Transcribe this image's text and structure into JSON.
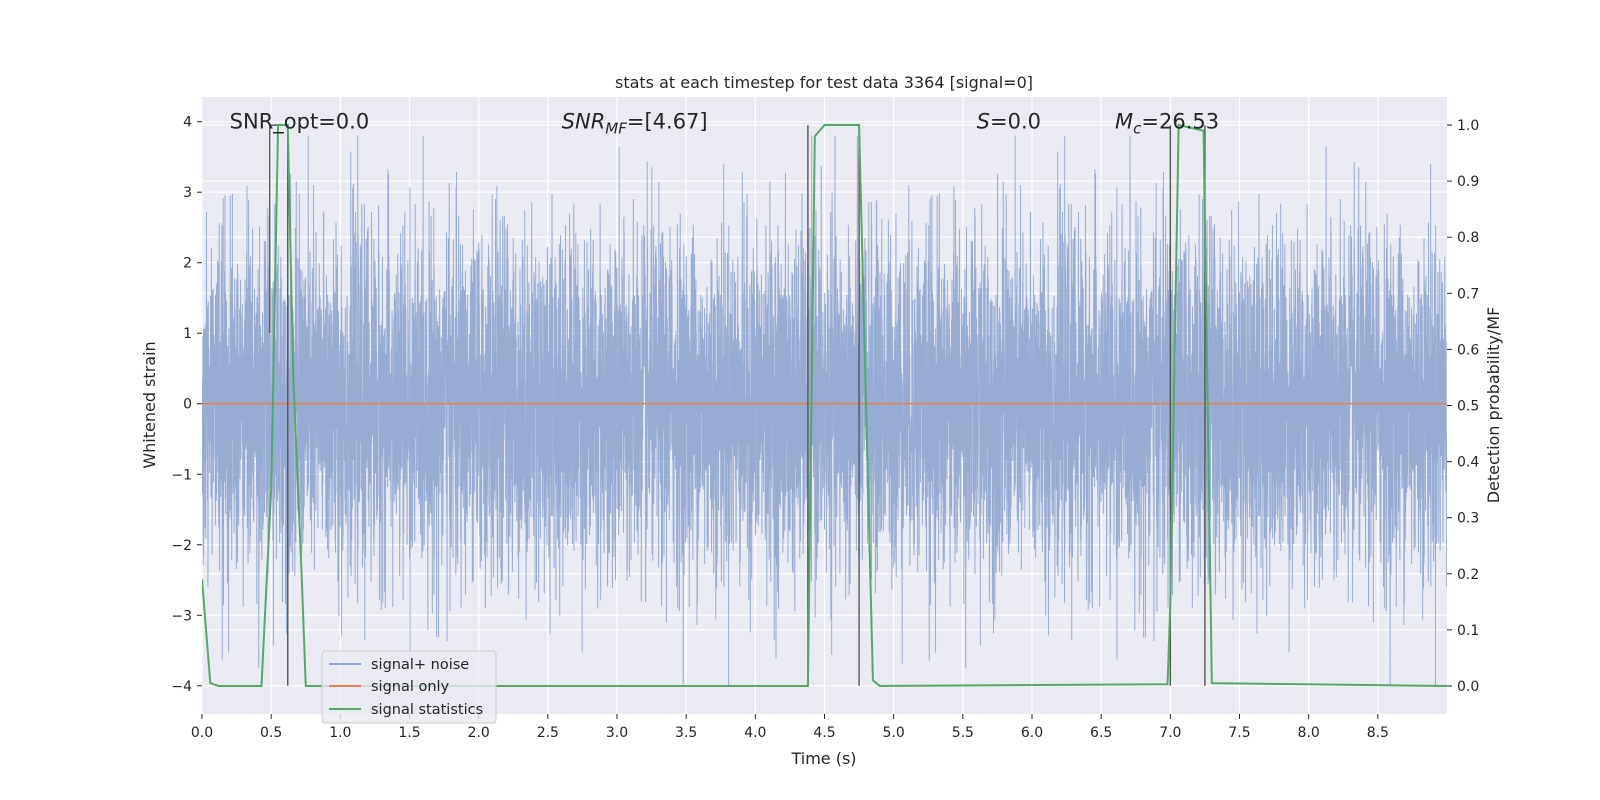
{
  "chart_data": {
    "type": "line",
    "title": "stats at each timestep for test data 3364 [signal=0]",
    "xlabel": "Time (s)",
    "ylabel_left": "Whitened strain",
    "ylabel_right": "Detection probability/MF",
    "xlim": [
      0.0,
      9.0
    ],
    "ylim_left": [
      -4.4,
      4.35
    ],
    "ylim_right": [
      -0.05,
      1.05
    ],
    "x_ticks": [
      0.0,
      0.5,
      1.0,
      1.5,
      2.0,
      2.5,
      3.0,
      3.5,
      4.0,
      4.5,
      5.0,
      5.5,
      6.0,
      6.5,
      7.0,
      7.5,
      8.0,
      8.5
    ],
    "x_tick_labels": [
      "0.0",
      "0.5",
      "1.0",
      "1.5",
      "2.0",
      "2.5",
      "3.0",
      "3.5",
      "4.0",
      "4.5",
      "5.0",
      "5.5",
      "6.0",
      "6.5",
      "7.0",
      "7.5",
      "8.0",
      "8.5"
    ],
    "y_left_ticks": [
      4,
      3,
      2,
      1,
      0,
      -1,
      -2,
      -3,
      -4
    ],
    "y_left_tick_labels": [
      "4",
      "3",
      "2",
      "1",
      "0",
      "−1",
      "−2",
      "−3",
      "−4"
    ],
    "y_right_ticks": [
      1.0,
      0.9,
      0.8,
      0.7,
      0.6,
      0.5,
      0.4,
      0.3,
      0.2,
      0.1,
      0.0
    ],
    "y_right_tick_labels": [
      "1.0",
      "0.9",
      "0.8",
      "0.7",
      "0.6",
      "0.5",
      "0.4",
      "0.3",
      "0.2",
      "0.1",
      "0.0"
    ],
    "grid": true,
    "legend_position": "lower-left",
    "annotations": [
      {
        "text": "SNR_opt=0.0",
        "x": 0.2,
        "y": 4.0
      },
      {
        "text": "SNR_MF=[4.67]",
        "x": 2.6,
        "y": 4.0
      },
      {
        "text": "S=0.0",
        "x": 5.6,
        "y": 4.0
      },
      {
        "text": "M_c=26.53",
        "x": 6.6,
        "y": 4.0
      }
    ],
    "series": [
      {
        "name": "signal+ noise",
        "axis": "left",
        "color": "#8fa5cf",
        "style": "dense-noise",
        "sample_rate": 1024,
        "duration": 9.0,
        "envelope_std": 1.2,
        "approx_range": [
          -4.0,
          3.8
        ]
      },
      {
        "name": "signal only",
        "axis": "left",
        "color": "#dd8452",
        "x": [
          0.0,
          9.0
        ],
        "y": [
          0.0,
          0.0
        ]
      },
      {
        "name": "signal statistics",
        "axis": "right",
        "color": "#55a868",
        "x": [
          0.0,
          0.06,
          0.12,
          0.43,
          0.5,
          0.55,
          0.62,
          0.66,
          0.72,
          0.75,
          4.38,
          4.43,
          4.5,
          4.75,
          4.85,
          4.9,
          6.98,
          7.0,
          7.06,
          7.24,
          7.3,
          9.0
        ],
        "y": [
          0.19,
          0.005,
          0.0,
          0.0,
          0.35,
          1.0,
          1.0,
          0.55,
          0.2,
          0.0,
          0.0,
          0.98,
          1.0,
          1.0,
          0.01,
          0.0,
          0.003,
          0.15,
          1.0,
          0.99,
          0.005,
          0.0
        ]
      }
    ],
    "vertical_markers": {
      "color": "#555555",
      "lines": [
        {
          "x": 0.49,
          "y_range": [
            1.0,
            3.95
          ]
        },
        {
          "x": 0.62,
          "y_range": [
            -4.0,
            3.95
          ]
        },
        {
          "x": 4.38,
          "y_range": [
            -4.0,
            3.95
          ]
        },
        {
          "x": 4.75,
          "y_range": [
            -4.0,
            3.95
          ]
        },
        {
          "x": 7.0,
          "y_range": [
            -4.0,
            3.95
          ]
        },
        {
          "x": 7.25,
          "y_range": [
            -4.0,
            3.95
          ]
        }
      ],
      "bracket": {
        "x": [
          0.49,
          0.58
        ],
        "y": 3.95
      }
    }
  }
}
